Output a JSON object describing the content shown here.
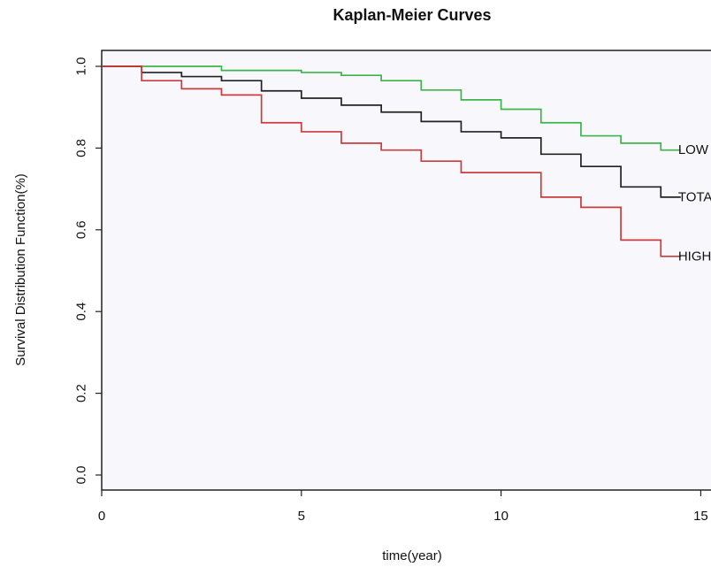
{
  "chart_data": {
    "type": "line",
    "title": "Kaplan-Meier Curves",
    "xlabel": "time(year)",
    "ylabel": "Survival Distribution Function(%)",
    "xlim": [
      0,
      15.5
    ],
    "ylim": [
      0,
      1
    ],
    "x_ticks": [
      "0",
      "5",
      "10",
      "15"
    ],
    "x_tick_values": [
      0,
      5,
      10,
      15
    ],
    "y_ticks": [
      "0.0",
      "0.2",
      "0.4",
      "0.6",
      "0.8",
      "1.0"
    ],
    "y_tick_values": [
      0,
      0.2,
      0.4,
      0.6,
      0.8,
      1.0
    ],
    "grid": false,
    "legend": "none",
    "series": [
      {
        "name": "LOW",
        "color": "#3cb44b",
        "steps": [
          [
            0,
            1.0
          ],
          [
            3,
            0.99
          ],
          [
            5,
            0.985
          ],
          [
            6,
            0.978
          ],
          [
            7,
            0.965
          ],
          [
            8,
            0.942
          ],
          [
            9,
            0.918
          ],
          [
            10,
            0.895
          ],
          [
            11,
            0.862
          ],
          [
            12,
            0.83
          ],
          [
            13,
            0.812
          ],
          [
            14,
            0.795
          ]
        ]
      },
      {
        "name": "TOTAL",
        "color": "#222222",
        "steps": [
          [
            0,
            1.0
          ],
          [
            1,
            0.985
          ],
          [
            2,
            0.975
          ],
          [
            3,
            0.965
          ],
          [
            4,
            0.94
          ],
          [
            5,
            0.922
          ],
          [
            6,
            0.905
          ],
          [
            7,
            0.888
          ],
          [
            8,
            0.865
          ],
          [
            9,
            0.84
          ],
          [
            10,
            0.825
          ],
          [
            11,
            0.785
          ],
          [
            12,
            0.755
          ],
          [
            13,
            0.705
          ],
          [
            14,
            0.68
          ]
        ]
      },
      {
        "name": "HIGH",
        "color": "#cc3b3b",
        "steps": [
          [
            0,
            1.0
          ],
          [
            1,
            0.965
          ],
          [
            2,
            0.945
          ],
          [
            3,
            0.93
          ],
          [
            4,
            0.862
          ],
          [
            5,
            0.84
          ],
          [
            6,
            0.812
          ],
          [
            7,
            0.795
          ],
          [
            8,
            0.768
          ],
          [
            9,
            0.74
          ],
          [
            11,
            0.68
          ],
          [
            12,
            0.655
          ],
          [
            13,
            0.575
          ],
          [
            14,
            0.535
          ]
        ]
      }
    ]
  }
}
